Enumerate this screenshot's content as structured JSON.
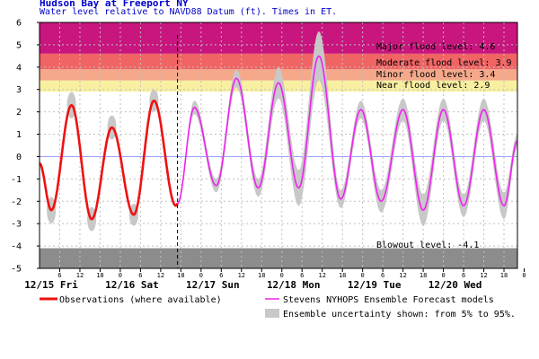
{
  "chart_data": {
    "type": "line",
    "title": "Hudson Bay at Freeport NY",
    "subtitle": "Water level relative to NAVD88 Datum (ft). Times in ET.",
    "xlabel": "",
    "ylabel": "",
    "ylim": [
      -5,
      6
    ],
    "y_ticks": [
      "6",
      "5",
      "4",
      "3",
      "2",
      "1",
      "0",
      "-1",
      "-2",
      "-3",
      "-4",
      "-5"
    ],
    "hour_ticks": [
      "6",
      "12",
      "18",
      "0",
      "6",
      "12",
      "18",
      "0",
      "6",
      "12",
      "18",
      "0",
      "6",
      "12",
      "18",
      "0",
      "6",
      "12",
      "18",
      "0",
      "6",
      "12",
      "18",
      "0",
      "6",
      "12",
      "18"
    ],
    "day_labels": [
      "12/15 Fri",
      "12/16 Sat",
      "12/17 Sun",
      "12/18 Mon",
      "12/19 Tue",
      "12/20 Wed"
    ],
    "x_start_hour": 0,
    "x_end_hours": 142,
    "now_marker_hours": 41,
    "thresholds": [
      {
        "label": "Major flood level: 4.6",
        "value": 4.6,
        "color": "#c8167e"
      },
      {
        "label": "Moderate flood level: 3.9",
        "value": 3.9,
        "color": "#f06464"
      },
      {
        "label": "Minor flood level: 3.4",
        "value": 3.4,
        "color": "#f5a88a"
      },
      {
        "label": "Near flood level: 2.9",
        "value": 2.9,
        "color": "#f8f0a0"
      },
      {
        "label": "Blowout level: -4.1",
        "value": -4.1,
        "color": "#8c8c8c"
      }
    ],
    "series": [
      {
        "name": "Observations (where available)",
        "color": "#ee1111",
        "points": [
          [
            0,
            -0.3
          ],
          [
            3.5,
            -2.4
          ],
          [
            9.5,
            2.3
          ],
          [
            15.5,
            -2.8
          ],
          [
            21.5,
            1.3
          ],
          [
            28,
            -2.6
          ],
          [
            34,
            2.5
          ],
          [
            40.5,
            -2.2
          ],
          [
            41,
            -2.1
          ]
        ]
      },
      {
        "name": "Stevens NYHOPS Ensemble Forecast models",
        "color": "#ee22ee",
        "points": [
          [
            41,
            -2.1
          ],
          [
            46,
            2.2
          ],
          [
            52.5,
            -1.3
          ],
          [
            58.5,
            3.5
          ],
          [
            65,
            -1.4
          ],
          [
            71,
            3.3
          ],
          [
            77,
            -1.4
          ],
          [
            83,
            4.5
          ],
          [
            89.5,
            -1.9
          ],
          [
            95.5,
            2.1
          ],
          [
            101.5,
            -2.0
          ],
          [
            108,
            2.1
          ],
          [
            114,
            -2.4
          ],
          [
            120,
            2.1
          ],
          [
            126,
            -2.2
          ],
          [
            132,
            2.1
          ],
          [
            138,
            -2.2
          ],
          [
            142,
            0.7
          ]
        ]
      }
    ],
    "uncertainty": {
      "name": "Ensemble uncertainty shown: from 5% to 95%.",
      "color": "#c8c8c8",
      "points": [
        [
          41,
          -2.1,
          0.1
        ],
        [
          46,
          2.2,
          0.3
        ],
        [
          52.5,
          -1.3,
          0.3
        ],
        [
          58.5,
          3.5,
          0.4
        ],
        [
          65,
          -1.4,
          0.4
        ],
        [
          71,
          3.3,
          0.7
        ],
        [
          77,
          -1.4,
          0.8
        ],
        [
          83,
          4.5,
          1.1
        ],
        [
          89.5,
          -1.9,
          0.4
        ],
        [
          95.5,
          2.1,
          0.4
        ],
        [
          101.5,
          -2.0,
          0.5
        ],
        [
          108,
          2.1,
          0.5
        ],
        [
          114,
          -2.4,
          0.7
        ],
        [
          120,
          2.1,
          0.5
        ],
        [
          126,
          -2.2,
          0.5
        ],
        [
          132,
          2.1,
          0.5
        ],
        [
          138,
          -2.2,
          0.6
        ],
        [
          142,
          0.7,
          0.3
        ]
      ],
      "obs_band": [
        [
          3.5,
          0.35
        ],
        [
          9.5,
          0.35
        ],
        [
          15.5,
          0.3
        ],
        [
          21.5,
          0.3
        ],
        [
          28,
          0.25
        ],
        [
          34,
          0.25
        ]
      ]
    },
    "grid": true,
    "legend_position": "bottom"
  }
}
